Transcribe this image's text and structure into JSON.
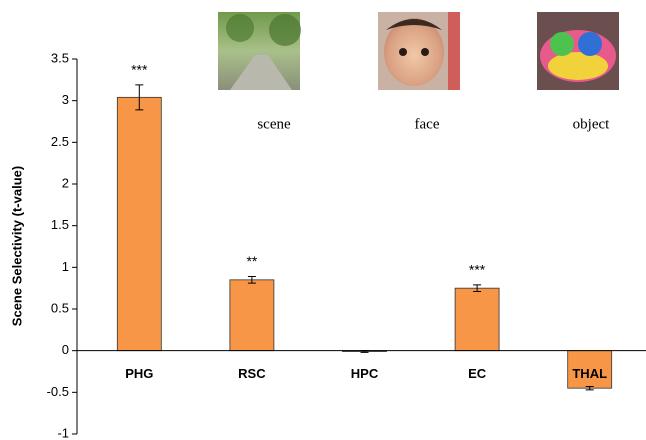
{
  "chart_data": {
    "type": "bar",
    "y_label": "Scene Selectivity  (t-value)",
    "categories": [
      "PHG",
      "RSC",
      "HPC",
      "EC",
      "THAL"
    ],
    "values": [
      3.04,
      0.85,
      -0.01,
      0.75,
      -0.45
    ],
    "errors": [
      0.15,
      0.04,
      0.01,
      0.04,
      0.02
    ],
    "annotations": [
      "***",
      "**",
      null,
      "***",
      null
    ],
    "color": "#f79646",
    "ylim": [
      -1,
      3.5
    ],
    "yticks": [
      -1,
      -0.5,
      0,
      0.5,
      1,
      1.5,
      2,
      2.5,
      3,
      3.5
    ],
    "grid": false
  },
  "images": [
    {
      "label": "scene"
    },
    {
      "label": "face"
    },
    {
      "label": "object"
    }
  ]
}
